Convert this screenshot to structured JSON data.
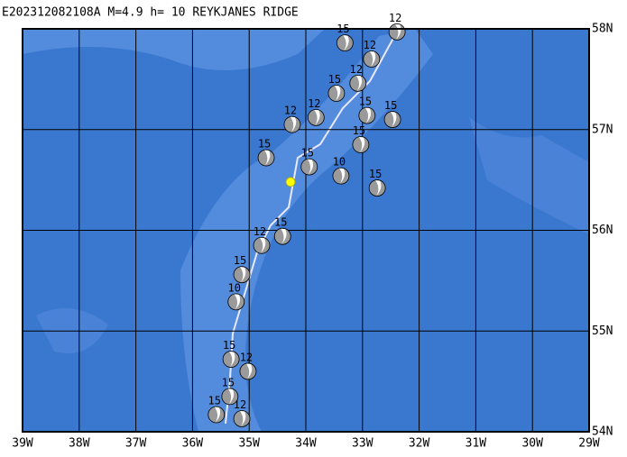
{
  "chart_data": {
    "type": "focal-map",
    "title": "E202312082108A M=4.9 h= 10 REYKJANES RIDGE",
    "xlim": [
      -39,
      -29
    ],
    "ylim": [
      54,
      58
    ],
    "xticks": [
      {
        "value": -39,
        "label": "39W"
      },
      {
        "value": -38,
        "label": "38W"
      },
      {
        "value": -37,
        "label": "37W"
      },
      {
        "value": -36,
        "label": "36W"
      },
      {
        "value": -35,
        "label": "35W"
      },
      {
        "value": -34,
        "label": "34W"
      },
      {
        "value": -33,
        "label": "33W"
      },
      {
        "value": -32,
        "label": "32W"
      },
      {
        "value": -31,
        "label": "31W"
      },
      {
        "value": -30,
        "label": "30W"
      },
      {
        "value": -29,
        "label": "29W"
      }
    ],
    "yticks": [
      {
        "value": 54,
        "label": "54N"
      },
      {
        "value": 55,
        "label": "55N"
      },
      {
        "value": 56,
        "label": "56N"
      },
      {
        "value": 57,
        "label": "57N"
      },
      {
        "value": 58,
        "label": "58N"
      }
    ],
    "grid": true,
    "epicenter": {
      "lon": -34.27,
      "lat": 56.48,
      "color": "#ffff00"
    },
    "events": {
      "lon": [
        -33.31,
        -32.47,
        -32.92,
        -33.03,
        -33.38,
        -32.74,
        -34.41,
        -34.78,
        -35.23,
        -35.13,
        -35.32,
        -35.58,
        -35.13,
        -33.08,
        -32.39,
        -34.24,
        -33.82,
        -34.7,
        -32.84,
        -33.46,
        -33.94,
        -35.02,
        -35.34
      ],
      "lat": [
        57.86,
        57.1,
        57.14,
        56.85,
        56.54,
        56.42,
        55.94,
        55.85,
        55.29,
        55.56,
        54.72,
        54.17,
        54.13,
        57.46,
        57.97,
        57.05,
        57.12,
        56.72,
        57.7,
        57.36,
        56.63,
        54.6,
        54.35
      ],
      "depth_labels": [
        "15",
        "15",
        "15",
        "15",
        "10",
        "15",
        "15",
        "12",
        "10",
        "15",
        "15",
        "15",
        "12",
        "12",
        "12",
        "12",
        "12",
        "15",
        "12",
        "15",
        "15",
        "12",
        "15"
      ]
    }
  }
}
